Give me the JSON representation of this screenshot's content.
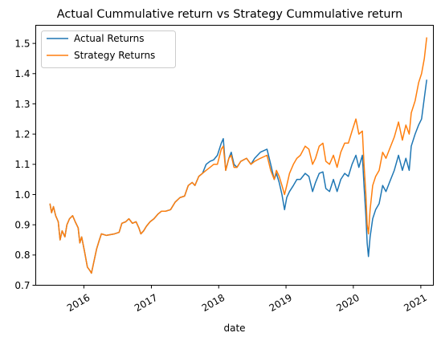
{
  "chart_data": {
    "type": "line",
    "title": "Actual Cummulative return vs Strategy Cummulative return",
    "xlabel": "date",
    "ylabel": "",
    "xlim": [
      "2015-04-15",
      "2021-03-10"
    ],
    "ylim": [
      0.7,
      1.56
    ],
    "x_ticks": [
      "2016",
      "2017",
      "2018",
      "2019",
      "2020",
      "2021"
    ],
    "y_ticks": [
      "0.7",
      "0.8",
      "0.9",
      "1.0",
      "1.1",
      "1.2",
      "1.3",
      "1.4",
      "1.5"
    ],
    "grid": false,
    "legend_position": "upper-left",
    "series": [
      {
        "name": "Actual Returns",
        "color": "#1f77b4",
        "points": [
          [
            "2015-07-01",
            0.97
          ],
          [
            "2015-07-10",
            0.94
          ],
          [
            "2015-07-20",
            0.96
          ],
          [
            "2015-08-01",
            0.93
          ],
          [
            "2015-08-15",
            0.91
          ],
          [
            "2015-08-25",
            0.85
          ],
          [
            "2015-09-05",
            0.88
          ],
          [
            "2015-09-20",
            0.86
          ],
          [
            "2015-10-01",
            0.9
          ],
          [
            "2015-10-15",
            0.92
          ],
          [
            "2015-11-01",
            0.93
          ],
          [
            "2015-11-15",
            0.91
          ],
          [
            "2015-12-01",
            0.89
          ],
          [
            "2015-12-10",
            0.84
          ],
          [
            "2015-12-20",
            0.86
          ],
          [
            "2016-01-05",
            0.81
          ],
          [
            "2016-01-20",
            0.76
          ],
          [
            "2016-02-01",
            0.75
          ],
          [
            "2016-02-11",
            0.74
          ],
          [
            "2016-02-25",
            0.78
          ],
          [
            "2016-03-10",
            0.82
          ],
          [
            "2016-03-25",
            0.85
          ],
          [
            "2016-04-05",
            0.87
          ],
          [
            "2016-05-01",
            0.865
          ],
          [
            "2016-06-15",
            0.87
          ],
          [
            "2016-07-10",
            0.875
          ],
          [
            "2016-07-25",
            0.905
          ],
          [
            "2016-08-15",
            0.91
          ],
          [
            "2016-09-01",
            0.92
          ],
          [
            "2016-09-20",
            0.905
          ],
          [
            "2016-10-10",
            0.91
          ],
          [
            "2016-10-25",
            0.89
          ],
          [
            "2016-11-05",
            0.87
          ],
          [
            "2016-11-20",
            0.88
          ],
          [
            "2016-12-05",
            0.895
          ],
          [
            "2016-12-25",
            0.91
          ],
          [
            "2017-01-15",
            0.92
          ],
          [
            "2017-02-05",
            0.935
          ],
          [
            "2017-02-25",
            0.945
          ],
          [
            "2017-03-20",
            0.945
          ],
          [
            "2017-04-15",
            0.95
          ],
          [
            "2017-05-10",
            0.975
          ],
          [
            "2017-06-05",
            0.99
          ],
          [
            "2017-06-30",
            0.995
          ],
          [
            "2017-07-20",
            1.03
          ],
          [
            "2017-08-10",
            1.04
          ],
          [
            "2017-08-25",
            1.03
          ],
          [
            "2017-09-15",
            1.06
          ],
          [
            "2017-10-05",
            1.07
          ],
          [
            "2017-10-25",
            1.1
          ],
          [
            "2017-11-15",
            1.11
          ],
          [
            "2017-12-05",
            1.115
          ],
          [
            "2017-12-25",
            1.13
          ],
          [
            "2018-01-15",
            1.17
          ],
          [
            "2018-01-26",
            1.185
          ],
          [
            "2018-02-08",
            1.08
          ],
          [
            "2018-02-25",
            1.12
          ],
          [
            "2018-03-10",
            1.14
          ],
          [
            "2018-03-25",
            1.1
          ],
          [
            "2018-04-10",
            1.09
          ],
          [
            "2018-05-01",
            1.11
          ],
          [
            "2018-06-01",
            1.12
          ],
          [
            "2018-06-25",
            1.1
          ],
          [
            "2018-07-15",
            1.12
          ],
          [
            "2018-08-15",
            1.14
          ],
          [
            "2018-09-20",
            1.15
          ],
          [
            "2018-10-10",
            1.1
          ],
          [
            "2018-10-29",
            1.05
          ],
          [
            "2018-11-10",
            1.07
          ],
          [
            "2018-11-25",
            1.04
          ],
          [
            "2018-12-10",
            1.0
          ],
          [
            "2018-12-24",
            0.95
          ],
          [
            "2019-01-05",
            0.99
          ],
          [
            "2019-01-20",
            1.01
          ],
          [
            "2019-02-10",
            1.03
          ],
          [
            "2019-03-01",
            1.05
          ],
          [
            "2019-03-20",
            1.05
          ],
          [
            "2019-04-15",
            1.07
          ],
          [
            "2019-05-05",
            1.06
          ],
          [
            "2019-05-25",
            1.01
          ],
          [
            "2019-06-10",
            1.04
          ],
          [
            "2019-06-30",
            1.07
          ],
          [
            "2019-07-20",
            1.075
          ],
          [
            "2019-08-05",
            1.02
          ],
          [
            "2019-08-25",
            1.01
          ],
          [
            "2019-09-15",
            1.05
          ],
          [
            "2019-10-05",
            1.01
          ],
          [
            "2019-10-25",
            1.05
          ],
          [
            "2019-11-15",
            1.07
          ],
          [
            "2019-12-05",
            1.06
          ],
          [
            "2019-12-25",
            1.1
          ],
          [
            "2020-01-15",
            1.13
          ],
          [
            "2020-01-31",
            1.09
          ],
          [
            "2020-02-19",
            1.13
          ],
          [
            "2020-02-28",
            1.03
          ],
          [
            "2020-03-09",
            0.93
          ],
          [
            "2020-03-16",
            0.84
          ],
          [
            "2020-03-23",
            0.795
          ],
          [
            "2020-04-01",
            0.86
          ],
          [
            "2020-04-15",
            0.92
          ],
          [
            "2020-05-01",
            0.95
          ],
          [
            "2020-05-20",
            0.97
          ],
          [
            "2020-06-08",
            1.03
          ],
          [
            "2020-06-26",
            1.01
          ],
          [
            "2020-07-15",
            1.04
          ],
          [
            "2020-08-10",
            1.08
          ],
          [
            "2020-09-02",
            1.13
          ],
          [
            "2020-09-23",
            1.08
          ],
          [
            "2020-10-12",
            1.12
          ],
          [
            "2020-10-30",
            1.08
          ],
          [
            "2020-11-10",
            1.16
          ],
          [
            "2020-12-01",
            1.2
          ],
          [
            "2020-12-20",
            1.23
          ],
          [
            "2021-01-05",
            1.25
          ],
          [
            "2021-01-20",
            1.32
          ],
          [
            "2021-02-02",
            1.38
          ]
        ]
      },
      {
        "name": "Strategy Returns",
        "color": "#ff7f0e",
        "points": [
          [
            "2015-07-01",
            0.97
          ],
          [
            "2015-07-10",
            0.94
          ],
          [
            "2015-07-20",
            0.96
          ],
          [
            "2015-08-01",
            0.93
          ],
          [
            "2015-08-15",
            0.91
          ],
          [
            "2015-08-25",
            0.85
          ],
          [
            "2015-09-05",
            0.88
          ],
          [
            "2015-09-20",
            0.86
          ],
          [
            "2015-10-01",
            0.9
          ],
          [
            "2015-10-15",
            0.92
          ],
          [
            "2015-11-01",
            0.93
          ],
          [
            "2015-11-15",
            0.91
          ],
          [
            "2015-12-01",
            0.89
          ],
          [
            "2015-12-10",
            0.84
          ],
          [
            "2015-12-20",
            0.86
          ],
          [
            "2016-01-05",
            0.81
          ],
          [
            "2016-01-20",
            0.76
          ],
          [
            "2016-02-01",
            0.75
          ],
          [
            "2016-02-11",
            0.74
          ],
          [
            "2016-02-25",
            0.78
          ],
          [
            "2016-03-10",
            0.82
          ],
          [
            "2016-03-25",
            0.85
          ],
          [
            "2016-04-05",
            0.87
          ],
          [
            "2016-05-01",
            0.865
          ],
          [
            "2016-06-15",
            0.87
          ],
          [
            "2016-07-10",
            0.875
          ],
          [
            "2016-07-25",
            0.905
          ],
          [
            "2016-08-15",
            0.91
          ],
          [
            "2016-09-01",
            0.92
          ],
          [
            "2016-09-20",
            0.905
          ],
          [
            "2016-10-10",
            0.91
          ],
          [
            "2016-10-25",
            0.89
          ],
          [
            "2016-11-05",
            0.87
          ],
          [
            "2016-11-20",
            0.88
          ],
          [
            "2016-12-05",
            0.895
          ],
          [
            "2016-12-25",
            0.91
          ],
          [
            "2017-01-15",
            0.92
          ],
          [
            "2017-02-05",
            0.935
          ],
          [
            "2017-02-25",
            0.945
          ],
          [
            "2017-03-20",
            0.945
          ],
          [
            "2017-04-15",
            0.95
          ],
          [
            "2017-05-10",
            0.975
          ],
          [
            "2017-06-05",
            0.99
          ],
          [
            "2017-06-30",
            0.995
          ],
          [
            "2017-07-20",
            1.03
          ],
          [
            "2017-08-10",
            1.04
          ],
          [
            "2017-08-25",
            1.03
          ],
          [
            "2017-09-15",
            1.06
          ],
          [
            "2017-10-05",
            1.07
          ],
          [
            "2017-10-25",
            1.08
          ],
          [
            "2017-11-15",
            1.09
          ],
          [
            "2017-12-05",
            1.1
          ],
          [
            "2017-12-25",
            1.1
          ],
          [
            "2018-01-15",
            1.15
          ],
          [
            "2018-01-26",
            1.16
          ],
          [
            "2018-02-08",
            1.08
          ],
          [
            "2018-02-25",
            1.12
          ],
          [
            "2018-03-10",
            1.13
          ],
          [
            "2018-03-25",
            1.09
          ],
          [
            "2018-04-10",
            1.09
          ],
          [
            "2018-05-01",
            1.11
          ],
          [
            "2018-06-01",
            1.12
          ],
          [
            "2018-06-25",
            1.1
          ],
          [
            "2018-07-15",
            1.11
          ],
          [
            "2018-08-15",
            1.12
          ],
          [
            "2018-09-20",
            1.13
          ],
          [
            "2018-10-10",
            1.08
          ],
          [
            "2018-10-29",
            1.05
          ],
          [
            "2018-11-10",
            1.08
          ],
          [
            "2018-11-25",
            1.06
          ],
          [
            "2018-12-10",
            1.03
          ],
          [
            "2018-12-24",
            1.0
          ],
          [
            "2019-01-05",
            1.03
          ],
          [
            "2019-01-20",
            1.07
          ],
          [
            "2019-02-10",
            1.1
          ],
          [
            "2019-03-01",
            1.12
          ],
          [
            "2019-03-20",
            1.13
          ],
          [
            "2019-04-15",
            1.16
          ],
          [
            "2019-05-05",
            1.15
          ],
          [
            "2019-05-25",
            1.1
          ],
          [
            "2019-06-10",
            1.12
          ],
          [
            "2019-06-30",
            1.16
          ],
          [
            "2019-07-20",
            1.17
          ],
          [
            "2019-08-05",
            1.11
          ],
          [
            "2019-08-25",
            1.1
          ],
          [
            "2019-09-15",
            1.13
          ],
          [
            "2019-10-05",
            1.09
          ],
          [
            "2019-10-25",
            1.14
          ],
          [
            "2019-11-15",
            1.17
          ],
          [
            "2019-12-05",
            1.17
          ],
          [
            "2019-12-25",
            1.21
          ],
          [
            "2020-01-15",
            1.25
          ],
          [
            "2020-01-31",
            1.2
          ],
          [
            "2020-02-19",
            1.21
          ],
          [
            "2020-02-28",
            1.1
          ],
          [
            "2020-03-09",
            1.0
          ],
          [
            "2020-03-16",
            0.9
          ],
          [
            "2020-03-23",
            0.87
          ],
          [
            "2020-04-01",
            0.95
          ],
          [
            "2020-04-15",
            1.03
          ],
          [
            "2020-05-01",
            1.06
          ],
          [
            "2020-05-20",
            1.08
          ],
          [
            "2020-06-08",
            1.14
          ],
          [
            "2020-06-26",
            1.12
          ],
          [
            "2020-07-15",
            1.15
          ],
          [
            "2020-08-10",
            1.19
          ],
          [
            "2020-09-02",
            1.24
          ],
          [
            "2020-09-23",
            1.18
          ],
          [
            "2020-10-12",
            1.23
          ],
          [
            "2020-10-30",
            1.2
          ],
          [
            "2020-11-10",
            1.27
          ],
          [
            "2020-12-01",
            1.31
          ],
          [
            "2020-12-20",
            1.37
          ],
          [
            "2021-01-05",
            1.4
          ],
          [
            "2021-01-20",
            1.45
          ],
          [
            "2021-02-02",
            1.52
          ]
        ]
      }
    ]
  }
}
